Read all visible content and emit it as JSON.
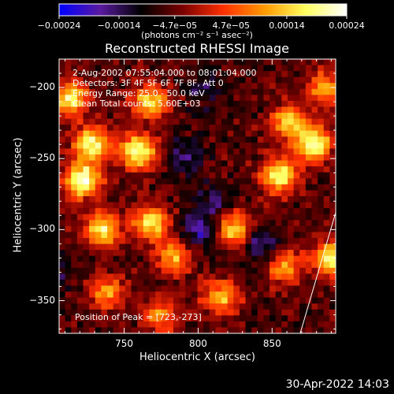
{
  "chart_data": {
    "type": "heatmap",
    "title": "Reconstructed RHESSI Image",
    "xlabel": "Heliocentric X (arcsec)",
    "ylabel": "Heliocentric Y (arcsec)",
    "xlim": [
      706,
      893
    ],
    "ylim": [
      -373,
      -180
    ],
    "x_ticks": [
      "750",
      "800",
      "850"
    ],
    "x_tick_values": [
      750,
      800,
      850
    ],
    "y_ticks": [
      "−200",
      "−250",
      "−300",
      "−350"
    ],
    "y_tick_values": [
      -200,
      -250,
      -300,
      -350
    ],
    "colorbar": {
      "unit_label": "(photons cm⁻² s⁻¹ asec⁻²)",
      "tick_labels": [
        "−0.00024",
        "−0.00014",
        "−4.7e−05",
        "4.7e−05",
        "0.00014",
        "0.00024"
      ],
      "tick_values": [
        -0.00024,
        -0.00014,
        -4.7e-05,
        4.7e-05,
        0.00014,
        0.00024
      ],
      "range": [
        -0.00024,
        0.00024
      ],
      "colors": [
        "#0000ff",
        "#5a1aa0",
        "#000000",
        "#7a0000",
        "#ff3000",
        "#ff9a00",
        "#ffff60",
        "#ffffff"
      ]
    },
    "annotations": [
      "2-Aug-2002 07:55:04.000 to 08:01:04.000",
      "Detectors: 3F 4F 5F 6F 7F 8F, Att 0",
      "Energy Range: 25.0 - 50.0 keV",
      "Clean     Total counts: 5.60E+03"
    ],
    "peak_label": "Position of Peak = [723,-273]",
    "peak": [
      723,
      -273
    ],
    "limb_line": [
      [
        869,
        -373
      ],
      [
        893,
        -288
      ]
    ],
    "hot_regions": [
      {
        "x": 722,
        "y": -265,
        "v": 1.0
      },
      {
        "x": 728,
        "y": -240,
        "v": 0.85
      },
      {
        "x": 714,
        "y": -208,
        "v": 0.8
      },
      {
        "x": 760,
        "y": -245,
        "v": 0.9
      },
      {
        "x": 767,
        "y": -210,
        "v": 0.75
      },
      {
        "x": 735,
        "y": -300,
        "v": 0.8
      },
      {
        "x": 768,
        "y": -295,
        "v": 0.75
      },
      {
        "x": 783,
        "y": -320,
        "v": 0.6
      },
      {
        "x": 825,
        "y": -300,
        "v": 0.7
      },
      {
        "x": 815,
        "y": -348,
        "v": 0.65
      },
      {
        "x": 855,
        "y": -262,
        "v": 0.85
      },
      {
        "x": 878,
        "y": -240,
        "v": 0.9
      },
      {
        "x": 862,
        "y": -225,
        "v": 0.7
      },
      {
        "x": 885,
        "y": -200,
        "v": 0.6
      },
      {
        "x": 890,
        "y": -320,
        "v": 0.8
      },
      {
        "x": 858,
        "y": -325,
        "v": 0.55
      },
      {
        "x": 738,
        "y": -345,
        "v": 0.55
      },
      {
        "x": 775,
        "y": -360,
        "v": 0.5
      }
    ],
    "cold_regions": [
      {
        "x": 800,
        "y": -300,
        "v": 0.9
      },
      {
        "x": 790,
        "y": -250,
        "v": 0.6
      },
      {
        "x": 805,
        "y": -200,
        "v": 0.6
      },
      {
        "x": 842,
        "y": -310,
        "v": 0.8
      },
      {
        "x": 700,
        "y": -330,
        "v": 0.6
      },
      {
        "x": 810,
        "y": -280,
        "v": 0.5
      }
    ]
  },
  "footer": {
    "stamp": "30-Apr-2022 14:03"
  }
}
